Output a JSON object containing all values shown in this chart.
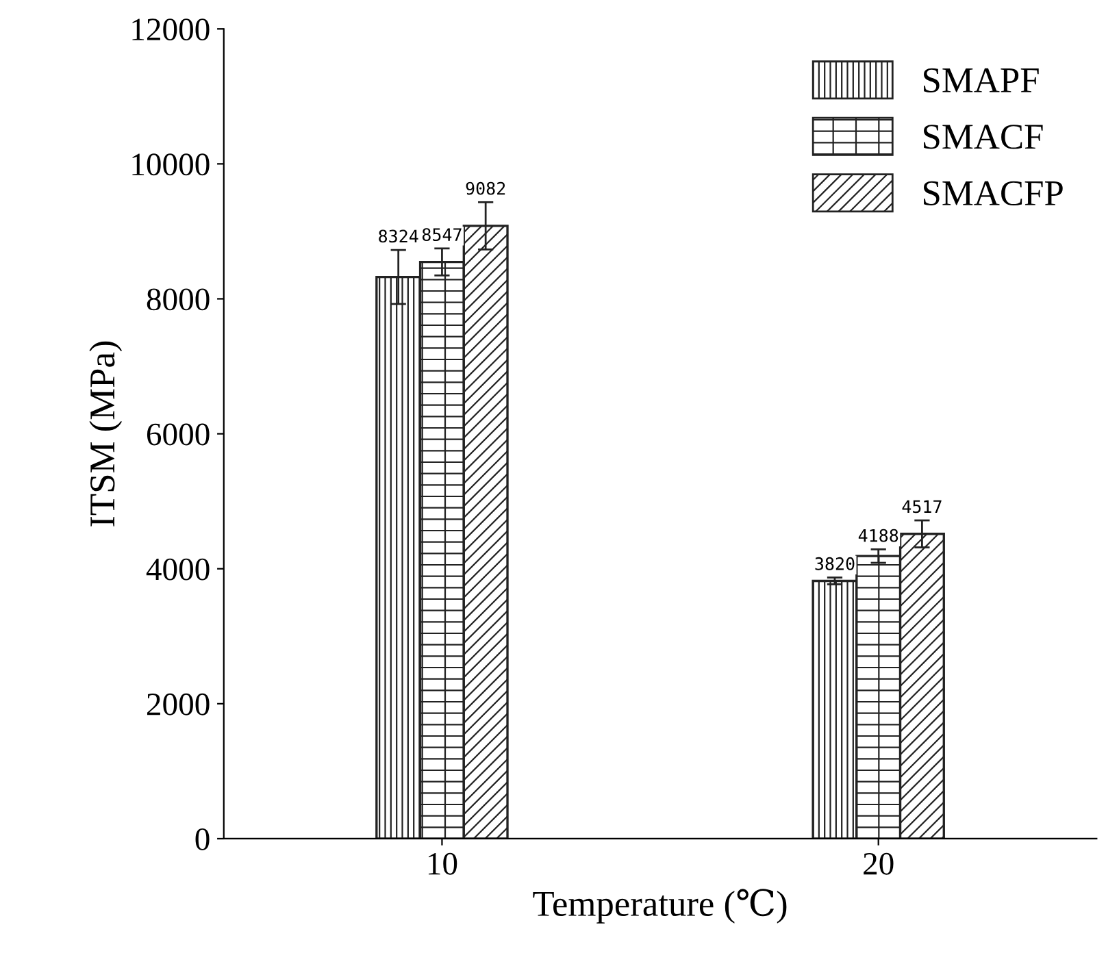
{
  "chart_data": {
    "type": "bar",
    "xlabel": "Temperature (℃)",
    "ylabel": "ITSM (MPa)",
    "categories": [
      "10",
      "20"
    ],
    "series": [
      {
        "name": "SMAPF",
        "color": "#222222",
        "values": [
          8324,
          3820
        ],
        "errors": [
          400,
          50
        ]
      },
      {
        "name": "SMACF",
        "color": "#222222",
        "values": [
          8547,
          4188
        ],
        "errors": [
          200,
          100
        ]
      },
      {
        "name": "SMACFP",
        "color": "#222222",
        "values": [
          9082,
          4517
        ],
        "errors": [
          350,
          200
        ]
      }
    ],
    "ylim": [
      0,
      12000
    ],
    "yticks": [
      0,
      2000,
      4000,
      6000,
      8000,
      10000,
      12000
    ],
    "data_labels": true,
    "legend": "top right",
    "grid": false
  }
}
